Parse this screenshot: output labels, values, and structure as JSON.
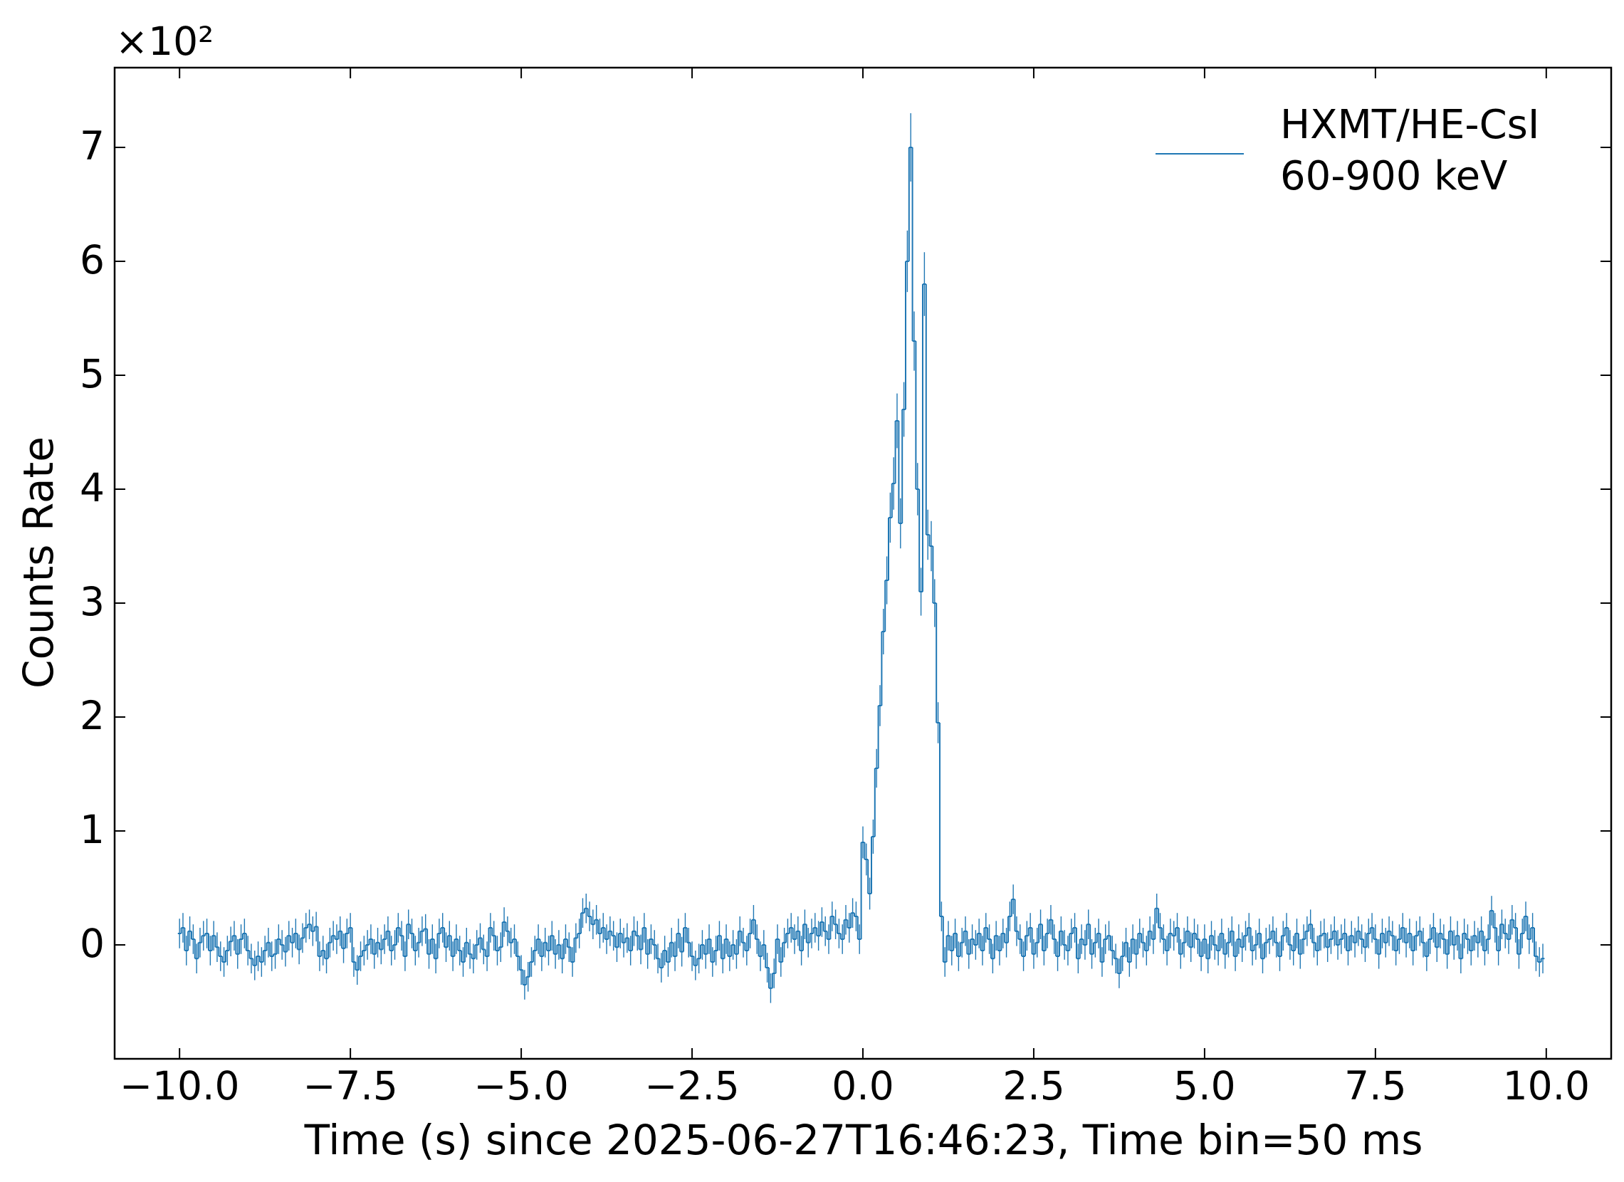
{
  "chart_data": {
    "type": "step-errorbar",
    "xlabel": "Time (s) since 2025-06-27T16:46:23, Time bin=50 ms",
    "ylabel": "Counts Rate",
    "y_offset_label": "×10²",
    "xlim": [
      -10.95,
      10.95
    ],
    "ylim": [
      -1.0,
      7.7
    ],
    "xticks": [
      {
        "value": -10,
        "label": "−10.0"
      },
      {
        "value": -7.5,
        "label": "−7.5"
      },
      {
        "value": -5,
        "label": "−5.0"
      },
      {
        "value": -2.5,
        "label": "−2.5"
      },
      {
        "value": 0,
        "label": "0.0"
      },
      2.5,
      {
        "value": 5,
        "label": "5.0"
      },
      7.5,
      {
        "value": 10,
        "label": "10.0"
      }
    ],
    "yticks": [
      0,
      1,
      2,
      3,
      4,
      5,
      6,
      7
    ],
    "grid": false,
    "legend": "upper right",
    "x": [
      -10,
      -9.95,
      -9.9,
      -9.85,
      -9.8,
      -9.75,
      -9.7,
      -9.65,
      -9.6,
      -9.55,
      -9.5,
      -9.45,
      -9.4,
      -9.35,
      -9.3,
      -9.25,
      -9.2,
      -9.15,
      -9.1,
      -9.05,
      -9,
      -8.95,
      -8.9,
      -8.85,
      -8.8,
      -8.75,
      -8.7,
      -8.65,
      -8.6,
      -8.55,
      -8.5,
      -8.45,
      -8.4,
      -8.35,
      -8.3,
      -8.25,
      -8.2,
      -8.15,
      -8.1,
      -8.05,
      -8,
      -7.95,
      -7.9,
      -7.85,
      -7.8,
      -7.75,
      -7.7,
      -7.65,
      -7.6,
      -7.55,
      -7.5,
      -7.45,
      -7.4,
      -7.35,
      -7.3,
      -7.25,
      -7.2,
      -7.15,
      -7.1,
      -7.05,
      -7,
      -6.95,
      -6.9,
      -6.85,
      -6.8,
      -6.75,
      -6.7,
      -6.65,
      -6.6,
      -6.55,
      -6.5,
      -6.45,
      -6.4,
      -6.35,
      -6.3,
      -6.25,
      -6.2,
      -6.15,
      -6.1,
      -6.05,
      -6,
      -5.95,
      -5.9,
      -5.85,
      -5.8,
      -5.75,
      -5.7,
      -5.65,
      -5.6,
      -5.55,
      -5.5,
      -5.45,
      -5.4,
      -5.35,
      -5.3,
      -5.25,
      -5.2,
      -5.15,
      -5.1,
      -5.05,
      -5,
      -4.95,
      -4.9,
      -4.85,
      -4.8,
      -4.75,
      -4.7,
      -4.65,
      -4.6,
      -4.55,
      -4.5,
      -4.45,
      -4.4,
      -4.35,
      -4.3,
      -4.25,
      -4.2,
      -4.15,
      -4.1,
      -4.05,
      -4,
      -3.95,
      -3.9,
      -3.85,
      -3.8,
      -3.75,
      -3.7,
      -3.65,
      -3.6,
      -3.55,
      -3.5,
      -3.45,
      -3.4,
      -3.35,
      -3.3,
      -3.25,
      -3.2,
      -3.15,
      -3.1,
      -3.05,
      -3,
      -2.95,
      -2.9,
      -2.85,
      -2.8,
      -2.75,
      -2.7,
      -2.65,
      -2.6,
      -2.55,
      -2.5,
      -2.45,
      -2.4,
      -2.35,
      -2.3,
      -2.25,
      -2.2,
      -2.15,
      -2.1,
      -2.05,
      -2,
      -1.95,
      -1.9,
      -1.85,
      -1.8,
      -1.75,
      -1.7,
      -1.65,
      -1.6,
      -1.55,
      -1.5,
      -1.45,
      -1.4,
      -1.35,
      -1.3,
      -1.25,
      -1.2,
      -1.15,
      -1.1,
      -1.05,
      -1,
      -0.95,
      -0.9,
      -0.85,
      -0.8,
      -0.75,
      -0.7,
      -0.65,
      -0.6,
      -0.55,
      -0.5,
      -0.45,
      -0.4,
      -0.35,
      -0.3,
      -0.25,
      -0.2,
      -0.15,
      -0.1,
      -0.05,
      0,
      0.05,
      0.1,
      0.15,
      0.2,
      0.25,
      0.3,
      0.35,
      0.4,
      0.45,
      0.5,
      0.55,
      0.6,
      0.65,
      0.7,
      0.75,
      0.8,
      0.85,
      0.9,
      0.95,
      1,
      1.05,
      1.1,
      1.15,
      1.2,
      1.25,
      1.3,
      1.35,
      1.4,
      1.45,
      1.5,
      1.55,
      1.6,
      1.65,
      1.7,
      1.75,
      1.8,
      1.85,
      1.9,
      1.95,
      2,
      2.05,
      2.1,
      2.15,
      2.2,
      2.25,
      2.3,
      2.35,
      2.4,
      2.45,
      2.5,
      2.55,
      2.6,
      2.65,
      2.7,
      2.75,
      2.8,
      2.85,
      2.9,
      2.95,
      3,
      3.05,
      3.1,
      3.15,
      3.2,
      3.25,
      3.3,
      3.35,
      3.4,
      3.45,
      3.5,
      3.55,
      3.6,
      3.65,
      3.7,
      3.75,
      3.8,
      3.85,
      3.9,
      3.95,
      4,
      4.05,
      4.1,
      4.15,
      4.2,
      4.25,
      4.3,
      4.35,
      4.4,
      4.45,
      4.5,
      4.55,
      4.6,
      4.65,
      4.7,
      4.75,
      4.8,
      4.85,
      4.9,
      4.95,
      5,
      5.05,
      5.1,
      5.15,
      5.2,
      5.25,
      5.3,
      5.35,
      5.4,
      5.45,
      5.5,
      5.55,
      5.6,
      5.65,
      5.7,
      5.75,
      5.8,
      5.85,
      5.9,
      5.95,
      6,
      6.05,
      6.1,
      6.15,
      6.2,
      6.25,
      6.3,
      6.35,
      6.4,
      6.45,
      6.5,
      6.55,
      6.6,
      6.65,
      6.7,
      6.75,
      6.8,
      6.85,
      6.9,
      6.95,
      7,
      7.05,
      7.1,
      7.15,
      7.2,
      7.25,
      7.3,
      7.35,
      7.4,
      7.45,
      7.5,
      7.55,
      7.6,
      7.65,
      7.7,
      7.75,
      7.8,
      7.85,
      7.9,
      7.95,
      8,
      8.05,
      8.1,
      8.15,
      8.2,
      8.25,
      8.3,
      8.35,
      8.4,
      8.45,
      8.5,
      8.55,
      8.6,
      8.65,
      8.7,
      8.75,
      8.8,
      8.85,
      8.9,
      8.95,
      9,
      9.05,
      9.1,
      9.15,
      9.2,
      9.25,
      9.3,
      9.35,
      9.4,
      9.45,
      9.5,
      9.55,
      9.6,
      9.65,
      9.7,
      9.75,
      9.8,
      9.85,
      9.9,
      9.95
    ],
    "series": [
      {
        "name": "HXMT/HE-CsI\n60-900 keV",
        "color": "#1f77b4",
        "values": [
          0.1,
          0.15,
          -0.05,
          0.12,
          0.05,
          -0.12,
          0.02,
          0.08,
          0.1,
          -0.05,
          0.08,
          -0.02,
          -0.1,
          -0.15,
          -0.05,
          0.03,
          0.08,
          -0.08,
          0.05,
          0.1,
          -0.05,
          -0.12,
          -0.18,
          -0.1,
          -0.15,
          -0.05,
          0.02,
          -0.1,
          -0.08,
          0.05,
          0.0,
          -0.06,
          0.08,
          0.02,
          0.1,
          -0.04,
          0.06,
          0.15,
          0.18,
          0.12,
          0.16,
          -0.1,
          -0.05,
          -0.12,
          0.02,
          0.08,
          0.05,
          0.12,
          -0.03,
          0.1,
          0.15,
          -0.15,
          -0.22,
          -0.1,
          -0.05,
          0.0,
          0.05,
          -0.08,
          0.02,
          -0.04,
          0.05,
          0.12,
          -0.05,
          0.0,
          0.15,
          0.08,
          -0.1,
          0.18,
          0.1,
          -0.05,
          0.02,
          0.12,
          0.14,
          -0.08,
          0.05,
          -0.12,
          0.1,
          0.15,
          -0.02,
          0.08,
          -0.1,
          0.05,
          -0.05,
          -0.15,
          0.02,
          -0.08,
          -0.12,
          0.0,
          0.06,
          -0.04,
          -0.1,
          0.15,
          0.08,
          -0.05,
          -0.02,
          0.2,
          0.12,
          0.02,
          0.05,
          -0.1,
          -0.22,
          -0.35,
          -0.28,
          -0.15,
          -0.05,
          0.05,
          -0.1,
          0.02,
          -0.05,
          0.08,
          -0.08,
          0.0,
          -0.12,
          0.05,
          -0.02,
          -0.15,
          0.06,
          0.1,
          0.28,
          0.32,
          0.25,
          0.18,
          0.22,
          0.1,
          0.15,
          0.05,
          0.12,
          0.08,
          -0.02,
          0.1,
          0.02,
          0.06,
          -0.05,
          0.12,
          0.08,
          -0.04,
          0.15,
          -0.08,
          0.05,
          0.0,
          -0.12,
          -0.2,
          -0.05,
          -0.15,
          0.02,
          -0.1,
          0.1,
          -0.06,
          0.15,
          0.02,
          -0.1,
          -0.18,
          -0.12,
          0.0,
          -0.08,
          0.05,
          -0.15,
          -0.05,
          0.08,
          -0.12,
          0.05,
          -0.1,
          0.0,
          -0.08,
          0.12,
          0.02,
          -0.05,
          0.1,
          0.22,
          0.05,
          -0.1,
          0.0,
          -0.2,
          -0.38,
          -0.25,
          0.05,
          -0.15,
          0.02,
          0.1,
          0.15,
          0.05,
          0.12,
          -0.05,
          0.18,
          0.02,
          0.1,
          0.15,
          0.08,
          0.2,
          0.12,
          0.05,
          0.25,
          0.18,
          0.1,
          0.05,
          0.22,
          0.15,
          0.28,
          0.25,
          0.05,
          0.9,
          0.75,
          0.45,
          0.95,
          1.55,
          2.1,
          2.75,
          3.2,
          3.75,
          4.05,
          4.6,
          3.7,
          4.7,
          6.0,
          7.0,
          5.3,
          4.0,
          3.1,
          5.8,
          3.6,
          3.5,
          3.0,
          1.95,
          0.25,
          -0.15,
          0.08,
          -0.05,
          0.1,
          -0.1,
          0.02,
          0.12,
          -0.08,
          0.05,
          0.0,
          0.1,
          -0.05,
          0.15,
          0.05,
          -0.12,
          0.08,
          -0.05,
          0.1,
          0.02,
          0.25,
          0.4,
          0.12,
          0.05,
          -0.1,
          0.08,
          0.15,
          -0.08,
          0.02,
          0.18,
          -0.05,
          0.1,
          0.22,
          0.05,
          -0.1,
          0.12,
          0.0,
          -0.05,
          0.1,
          0.15,
          -0.12,
          0.05,
          0.0,
          0.18,
          -0.08,
          0.02,
          0.1,
          -0.15,
          0.05,
          0.08,
          -0.05,
          -0.12,
          -0.25,
          -0.1,
          0.02,
          -0.15,
          0.05,
          -0.08,
          0.1,
          0.02,
          -0.05,
          0.12,
          0.05,
          0.32,
          0.15,
          0.05,
          -0.05,
          0.1,
          0.08,
          0.15,
          -0.08,
          0.02,
          0.12,
          -0.02,
          0.1,
          0.05,
          -0.1,
          0.05,
          -0.12,
          0.08,
          0.0,
          -0.05,
          0.1,
          -0.08,
          0.02,
          0.12,
          -0.1,
          0.05,
          -0.02,
          0.08,
          0.15,
          -0.05,
          0.0,
          0.1,
          -0.12,
          0.02,
          0.05,
          0.12,
          0.02,
          -0.1,
          0.08,
          0.15,
          0.0,
          -0.05,
          0.1,
          -0.08,
          0.05,
          0.12,
          0.18,
          0.02,
          -0.05,
          0.08,
          0.1,
          -0.02,
          0.05,
          0.12,
          0.0,
          0.05,
          0.1,
          -0.05,
          0.08,
          0.02,
          0.12,
          0.05,
          -0.02,
          0.1,
          0.15,
          0.05,
          -0.08,
          0.1,
          0.02,
          0.12,
          0.08,
          -0.05,
          0.05,
          0.15,
          0.02,
          0.1,
          -0.05,
          0.08,
          0.12,
          0.02,
          -0.1,
          0.05,
          0.15,
          -0.02,
          0.1,
          0.05,
          -0.08,
          0.12,
          0.0,
          0.08,
          -0.12,
          0.1,
          0.05,
          -0.05,
          0.08,
          0.02,
          0.12,
          -0.05,
          0.05,
          0.3,
          0.15,
          -0.05,
          0.18,
          0.1,
          0.05,
          0.22,
          0.15,
          -0.08,
          0.1,
          0.25,
          0.05,
          0.15,
          -0.1,
          -0.15,
          -0.12
        ],
        "errors": [
          0.13,
          0.13,
          0.13,
          0.13,
          0.13,
          0.13,
          0.13,
          0.13,
          0.13,
          0.13,
          0.13,
          0.13,
          0.13,
          0.13,
          0.13,
          0.13,
          0.13,
          0.13,
          0.13,
          0.13,
          0.13,
          0.13,
          0.13,
          0.13,
          0.13,
          0.13,
          0.13,
          0.13,
          0.13,
          0.13,
          0.13,
          0.13,
          0.13,
          0.13,
          0.13,
          0.13,
          0.13,
          0.13,
          0.13,
          0.13,
          0.13,
          0.13,
          0.13,
          0.13,
          0.13,
          0.13,
          0.13,
          0.13,
          0.13,
          0.13,
          0.13,
          0.13,
          0.13,
          0.13,
          0.13,
          0.13,
          0.13,
          0.13,
          0.13,
          0.13,
          0.13,
          0.13,
          0.13,
          0.13,
          0.13,
          0.13,
          0.13,
          0.13,
          0.13,
          0.13,
          0.13,
          0.13,
          0.13,
          0.13,
          0.13,
          0.13,
          0.13,
          0.13,
          0.13,
          0.13,
          0.13,
          0.13,
          0.13,
          0.13,
          0.13,
          0.13,
          0.13,
          0.13,
          0.13,
          0.13,
          0.13,
          0.13,
          0.13,
          0.13,
          0.13,
          0.13,
          0.13,
          0.13,
          0.13,
          0.13,
          0.13,
          0.13,
          0.13,
          0.13,
          0.13,
          0.13,
          0.13,
          0.13,
          0.13,
          0.13,
          0.13,
          0.13,
          0.13,
          0.13,
          0.13,
          0.13,
          0.13,
          0.13,
          0.13,
          0.13,
          0.13,
          0.13,
          0.13,
          0.13,
          0.13,
          0.13,
          0.13,
          0.13,
          0.13,
          0.13,
          0.13,
          0.13,
          0.13,
          0.13,
          0.13,
          0.13,
          0.13,
          0.13,
          0.13,
          0.13,
          0.13,
          0.13,
          0.13,
          0.13,
          0.13,
          0.13,
          0.13,
          0.13,
          0.13,
          0.13,
          0.13,
          0.13,
          0.13,
          0.13,
          0.13,
          0.13,
          0.13,
          0.13,
          0.13,
          0.13,
          0.13,
          0.13,
          0.13,
          0.13,
          0.13,
          0.13,
          0.13,
          0.13,
          0.13,
          0.13,
          0.13,
          0.13,
          0.13,
          0.13,
          0.13,
          0.13,
          0.13,
          0.13,
          0.13,
          0.13,
          0.13,
          0.13,
          0.13,
          0.13,
          0.13,
          0.13,
          0.13,
          0.13,
          0.13,
          0.13,
          0.13,
          0.13,
          0.13,
          0.13,
          0.13,
          0.13,
          0.13,
          0.13,
          0.13,
          0.13,
          0.14,
          0.14,
          0.14,
          0.15,
          0.17,
          0.18,
          0.2,
          0.21,
          0.22,
          0.23,
          0.24,
          0.22,
          0.24,
          0.27,
          0.3,
          0.26,
          0.23,
          0.21,
          0.28,
          0.22,
          0.22,
          0.21,
          0.18,
          0.13,
          0.13,
          0.13,
          0.13,
          0.13,
          0.13,
          0.13,
          0.13,
          0.13,
          0.13,
          0.13,
          0.13,
          0.13,
          0.13,
          0.13,
          0.13,
          0.13,
          0.13,
          0.13,
          0.13,
          0.13,
          0.13,
          0.13,
          0.13,
          0.13,
          0.13,
          0.13,
          0.13,
          0.13,
          0.13,
          0.13,
          0.13,
          0.13,
          0.13,
          0.13,
          0.13,
          0.13,
          0.13,
          0.13,
          0.13,
          0.13,
          0.13,
          0.13,
          0.13,
          0.13,
          0.13,
          0.13,
          0.13,
          0.13,
          0.13,
          0.13,
          0.13,
          0.13,
          0.13,
          0.13,
          0.13,
          0.13,
          0.13,
          0.13,
          0.13,
          0.13,
          0.13,
          0.13,
          0.13,
          0.13,
          0.13,
          0.13,
          0.13,
          0.13,
          0.13,
          0.13,
          0.13,
          0.13,
          0.13,
          0.13,
          0.13,
          0.13,
          0.13,
          0.13,
          0.13,
          0.13,
          0.13,
          0.13,
          0.13,
          0.13,
          0.13,
          0.13,
          0.13,
          0.13,
          0.13,
          0.13,
          0.13,
          0.13,
          0.13,
          0.13,
          0.13,
          0.13,
          0.13,
          0.13,
          0.13,
          0.13,
          0.13,
          0.13,
          0.13,
          0.13,
          0.13,
          0.13,
          0.13,
          0.13,
          0.13,
          0.13,
          0.13,
          0.13,
          0.13,
          0.13,
          0.13,
          0.13,
          0.13,
          0.13,
          0.13,
          0.13,
          0.13,
          0.13,
          0.13,
          0.13,
          0.13,
          0.13,
          0.13,
          0.13,
          0.13,
          0.13,
          0.13,
          0.13,
          0.13,
          0.13,
          0.13,
          0.13,
          0.13,
          0.13,
          0.13,
          0.13,
          0.13,
          0.13,
          0.13,
          0.13,
          0.13,
          0.13,
          0.13,
          0.13,
          0.13,
          0.13,
          0.13,
          0.13,
          0.13,
          0.13,
          0.13,
          0.13,
          0.13,
          0.13,
          0.13,
          0.13,
          0.13,
          0.13,
          0.13,
          0.13,
          0.13,
          0.13,
          0.13,
          0.13,
          0.13,
          0.13,
          0.13,
          0.13,
          0.13,
          0.13,
          0.13,
          0.13
        ]
      }
    ]
  }
}
